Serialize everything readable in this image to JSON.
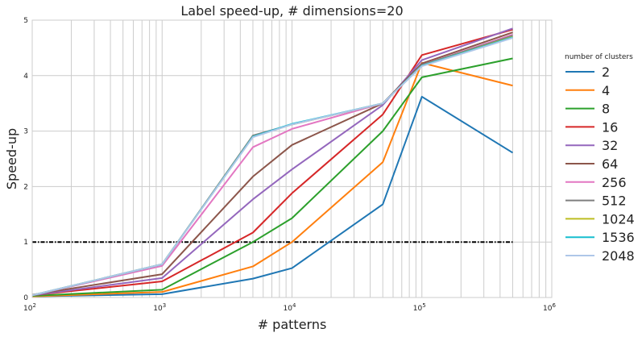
{
  "chart_data": {
    "type": "line",
    "title": "Label speed-up, # dimensions=20",
    "xlabel": "# patterns",
    "ylabel": "Speed-up",
    "xscale": "log",
    "xlim": [
      100,
      1000000
    ],
    "ylim": [
      0,
      5
    ],
    "grid": true,
    "x_ticks": [
      {
        "value": 100,
        "base": "10",
        "exp": "2"
      },
      {
        "value": 1000,
        "base": "10",
        "exp": "3"
      },
      {
        "value": 10000,
        "base": "10",
        "exp": "4"
      },
      {
        "value": 100000,
        "base": "10",
        "exp": "5"
      },
      {
        "value": 1000000,
        "base": "10",
        "exp": "6"
      }
    ],
    "y_ticks": [
      0,
      1,
      2,
      3,
      4,
      5
    ],
    "x": [
      100,
      1000,
      5000,
      10000,
      50000,
      100000,
      500000
    ],
    "series": [
      {
        "name": "2",
        "color": "#1f77b4",
        "values": [
          0.02,
          0.06,
          0.34,
          0.53,
          1.68,
          3.62,
          2.61
        ]
      },
      {
        "name": "4",
        "color": "#ff7f0e",
        "values": [
          0.02,
          0.1,
          0.56,
          1.0,
          2.44,
          4.23,
          3.82
        ]
      },
      {
        "name": "8",
        "color": "#2ca02c",
        "values": [
          0.03,
          0.14,
          1.0,
          1.43,
          3.0,
          3.97,
          4.31
        ]
      },
      {
        "name": "16",
        "color": "#d62728",
        "values": [
          0.04,
          0.29,
          1.17,
          1.88,
          3.3,
          4.37,
          4.83
        ]
      },
      {
        "name": "32",
        "color": "#9467bd",
        "values": [
          0.04,
          0.35,
          1.77,
          2.31,
          3.47,
          4.28,
          4.85
        ]
      },
      {
        "name": "64",
        "color": "#8c564b",
        "values": [
          0.05,
          0.42,
          2.18,
          2.75,
          3.5,
          4.22,
          4.78
        ]
      },
      {
        "name": "256",
        "color": "#e377c2",
        "values": [
          0.04,
          0.57,
          2.71,
          3.04,
          3.5,
          4.19,
          4.74
        ]
      },
      {
        "name": "512",
        "color": "#7f7f7f",
        "values": [
          0.04,
          0.6,
          2.92,
          3.12,
          3.5,
          4.19,
          4.72
        ]
      },
      {
        "name": "1024",
        "color": "#bcbd22",
        "values": [
          0.04,
          0.6,
          2.9,
          3.12,
          3.5,
          4.18,
          4.7
        ]
      },
      {
        "name": "1536",
        "color": "#17becf",
        "values": [
          0.04,
          0.6,
          2.9,
          3.13,
          3.5,
          4.18,
          4.69
        ]
      },
      {
        "name": "2048",
        "color": "#aec7e8",
        "values": [
          0.04,
          0.6,
          2.89,
          3.12,
          3.5,
          4.17,
          4.68
        ]
      }
    ],
    "reference_line": {
      "y": 1,
      "x_range": [
        100,
        500000
      ],
      "color": "#000000",
      "style": "dash-dot"
    },
    "legend": {
      "title": "number of clusters",
      "position": "right"
    }
  }
}
